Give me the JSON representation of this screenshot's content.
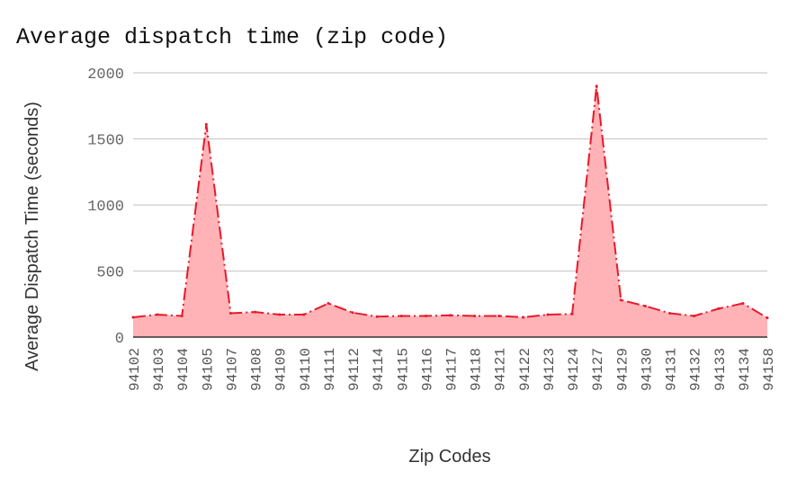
{
  "chart_data": {
    "type": "area",
    "title": "Average dispatch time (zip code)",
    "xlabel": "Zip Codes",
    "ylabel": "Average Dispatch Time (seconds)",
    "ylim": [
      0,
      2000
    ],
    "yticks": [
      "0",
      "500",
      "1000",
      "1500",
      "2000"
    ],
    "grid": true,
    "legend": "none",
    "line_style": "dash-dot",
    "colors": {
      "line": "#e8192c",
      "fill": "#ffb3b6",
      "grid": "#cccccc",
      "baseline": "#333333"
    },
    "categories": [
      "94102",
      "94103",
      "94104",
      "94105",
      "94107",
      "94108",
      "94109",
      "94110",
      "94111",
      "94112",
      "94114",
      "94115",
      "94116",
      "94117",
      "94118",
      "94121",
      "94122",
      "94123",
      "94124",
      "94127",
      "94129",
      "94130",
      "94131",
      "94132",
      "94133",
      "94134",
      "94158"
    ],
    "values": [
      150,
      170,
      160,
      1610,
      180,
      190,
      170,
      170,
      255,
      185,
      155,
      160,
      160,
      165,
      160,
      160,
      150,
      170,
      175,
      1900,
      280,
      235,
      180,
      160,
      215,
      255,
      145
    ]
  }
}
